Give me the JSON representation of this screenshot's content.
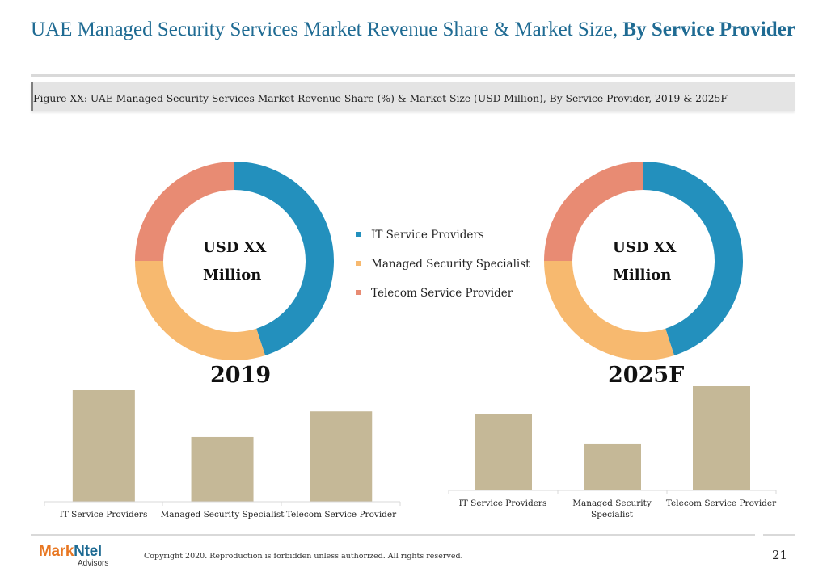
{
  "header": {
    "title_regular": "UAE Managed Security Services Market Revenue Share & Market Size, ",
    "title_bold": "By Service Provider",
    "figure_caption": "Figure XX: UAE Managed Security Services Market Revenue Share (%) & Market Size (USD Million), By Service Provider, 2019 & 2025F"
  },
  "colors": {
    "it_service_providers": "#2390bd",
    "managed_security_specialist": "#f7b96f",
    "telecom_service_provider": "#e88b73",
    "bars": "#c5b897",
    "title": "#1f6b93"
  },
  "legend": {
    "items": [
      {
        "label": "IT Service Providers",
        "color": "#2390bd"
      },
      {
        "label": "Managed Security Specialist",
        "color": "#f7b96f"
      },
      {
        "label": "Telecom Service Provider",
        "color": "#e88b73"
      }
    ]
  },
  "donuts": [
    {
      "center_line1": "USD XX",
      "center_line2": "Million",
      "year": "2019"
    },
    {
      "center_line1": "USD XX",
      "center_line2": "Million",
      "year": "2025F"
    }
  ],
  "chart_data": [
    {
      "type": "pie",
      "title": "2019",
      "categories": [
        "IT Service Providers",
        "Managed Security Specialist",
        "Telecom Service Provider"
      ],
      "values": [
        45,
        30,
        25
      ],
      "center_label": "USD XX Million"
    },
    {
      "type": "pie",
      "title": "2025F",
      "categories": [
        "IT Service Providers",
        "Managed Security Specialist",
        "Telecom Service Provider"
      ],
      "values": [
        45,
        30,
        25
      ],
      "center_label": "USD XX Million"
    },
    {
      "type": "bar",
      "title": "2019",
      "categories": [
        "IT Service Providers",
        "Managed Security Specialist",
        "Telecom Service Provider"
      ],
      "values": [
        100,
        58,
        81
      ],
      "ylim": [
        0,
        100
      ],
      "grid": false
    },
    {
      "type": "bar",
      "title": "2025F",
      "categories": [
        "IT Service Providers",
        "Managed Security Specialist",
        "Telecom Service Provider"
      ],
      "values": [
        73,
        45,
        100
      ],
      "ylim": [
        0,
        100
      ],
      "grid": false
    }
  ],
  "bar_labels_2025": {
    "cat1_line1": "IT Service Providers",
    "cat2_line1": "Managed Security",
    "cat2_line2": "Specialist",
    "cat3_line1": "Telecom Service Provider"
  },
  "footer": {
    "brand_part1": "Mark",
    "brand_part2": "Ntel",
    "brand_sub": "Advisors",
    "copyright": "Copyright 2020. Reproduction is forbidden unless authorized. All rights reserved.",
    "page_number": "21"
  }
}
